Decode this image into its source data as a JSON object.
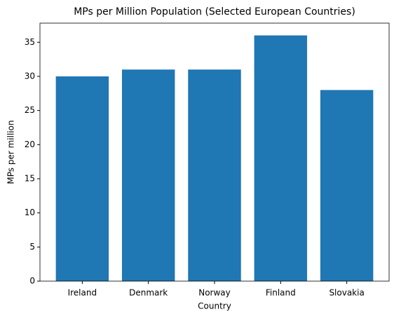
{
  "chart_data": {
    "type": "bar",
    "title": "MPs per Million Population (Selected European Countries)",
    "x_label": "Country",
    "y_label": "MPs per million",
    "categories": [
      "Ireland",
      "Denmark",
      "Norway",
      "Finland",
      "Slovakia"
    ],
    "values": [
      30,
      31,
      31,
      36,
      28
    ],
    "color": "#1f77b4",
    "ylim": [
      0,
      37.8
    ],
    "yticks": [
      0,
      5,
      10,
      15,
      20,
      25,
      30,
      35
    ]
  }
}
